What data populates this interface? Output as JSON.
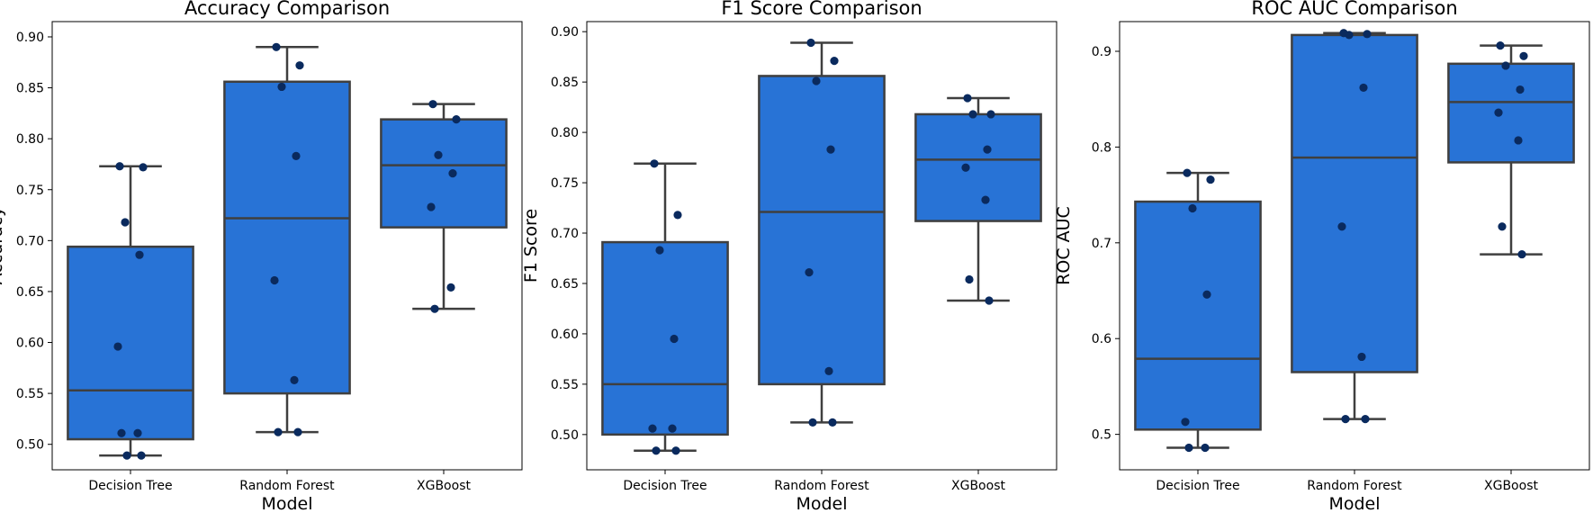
{
  "chart_data": [
    {
      "type": "box",
      "title": "Accuracy Comparison",
      "xlabel": "Model",
      "ylabel": "Accuracy",
      "categories": [
        "Decision Tree",
        "Random Forest",
        "XGBoost"
      ],
      "ylim": [
        0.475,
        0.915
      ],
      "yticks": [
        0.5,
        0.55,
        0.6,
        0.65,
        0.7,
        0.75,
        0.8,
        0.85,
        0.9
      ],
      "ytick_labels": [
        "0.50",
        "0.55",
        "0.60",
        "0.65",
        "0.70",
        "0.75",
        "0.80",
        "0.85",
        "0.90"
      ],
      "boxes": [
        {
          "whislo": 0.489,
          "q1": 0.505,
          "med": 0.553,
          "q3": 0.694,
          "whishi": 0.773
        },
        {
          "whislo": 0.512,
          "q1": 0.55,
          "med": 0.722,
          "q3": 0.856,
          "whishi": 0.89
        },
        {
          "whislo": 0.633,
          "q1": 0.713,
          "med": 0.774,
          "q3": 0.819,
          "whishi": 0.834
        }
      ],
      "points": [
        [
          0.773,
          0.772,
          0.718,
          0.686,
          0.596,
          0.511,
          0.511,
          0.489,
          0.489
        ],
        [
          0.89,
          0.872,
          0.851,
          0.783,
          0.661,
          0.563,
          0.512,
          0.512
        ],
        [
          0.834,
          0.819,
          0.784,
          0.766,
          0.733,
          0.654,
          0.633
        ]
      ]
    },
    {
      "type": "box",
      "title": "F1 Score Comparison",
      "xlabel": "Model",
      "ylabel": "F1 Score",
      "categories": [
        "Decision Tree",
        "Random Forest",
        "XGBoost"
      ],
      "ylim": [
        0.465,
        0.91
      ],
      "yticks": [
        0.5,
        0.55,
        0.6,
        0.65,
        0.7,
        0.75,
        0.8,
        0.85,
        0.9
      ],
      "ytick_labels": [
        "0.50",
        "0.55",
        "0.60",
        "0.65",
        "0.70",
        "0.75",
        "0.80",
        "0.85",
        "0.90"
      ],
      "boxes": [
        {
          "whislo": 0.484,
          "q1": 0.5,
          "med": 0.55,
          "q3": 0.691,
          "whishi": 0.769
        },
        {
          "whislo": 0.512,
          "q1": 0.55,
          "med": 0.721,
          "q3": 0.856,
          "whishi": 0.889
        },
        {
          "whislo": 0.633,
          "q1": 0.712,
          "med": 0.773,
          "q3": 0.818,
          "whishi": 0.834
        }
      ],
      "points": [
        [
          0.769,
          0.718,
          0.683,
          0.595,
          0.506,
          0.506,
          0.484,
          0.484
        ],
        [
          0.889,
          0.871,
          0.851,
          0.783,
          0.661,
          0.563,
          0.512,
          0.512
        ],
        [
          0.834,
          0.818,
          0.818,
          0.783,
          0.765,
          0.733,
          0.654,
          0.633
        ]
      ]
    },
    {
      "type": "box",
      "title": "ROC AUC Comparison",
      "xlabel": "Model",
      "ylabel": "ROC AUC",
      "categories": [
        "Decision Tree",
        "Random Forest",
        "XGBoost"
      ],
      "ylim": [
        0.463,
        0.931
      ],
      "yticks": [
        0.5,
        0.6,
        0.7,
        0.8,
        0.9
      ],
      "ytick_labels": [
        "0.5",
        "0.6",
        "0.7",
        "0.8",
        "0.9"
      ],
      "boxes": [
        {
          "whislo": 0.486,
          "q1": 0.505,
          "med": 0.579,
          "q3": 0.743,
          "whishi": 0.773
        },
        {
          "whislo": 0.516,
          "q1": 0.565,
          "med": 0.789,
          "q3": 0.917,
          "whishi": 0.919
        },
        {
          "whislo": 0.688,
          "q1": 0.784,
          "med": 0.847,
          "q3": 0.887,
          "whishi": 0.906
        }
      ],
      "points": [
        [
          0.773,
          0.766,
          0.736,
          0.646,
          0.513,
          0.486,
          0.486
        ],
        [
          0.919,
          0.918,
          0.917,
          0.862,
          0.717,
          0.581,
          0.516,
          0.516
        ],
        [
          0.906,
          0.895,
          0.885,
          0.86,
          0.836,
          0.807,
          0.717,
          0.688
        ]
      ]
    }
  ],
  "colors": {
    "box_fill": "#2873d6",
    "box_edge": "#3f3f3f",
    "point": "#0a2a5e",
    "axes": "#000000"
  }
}
